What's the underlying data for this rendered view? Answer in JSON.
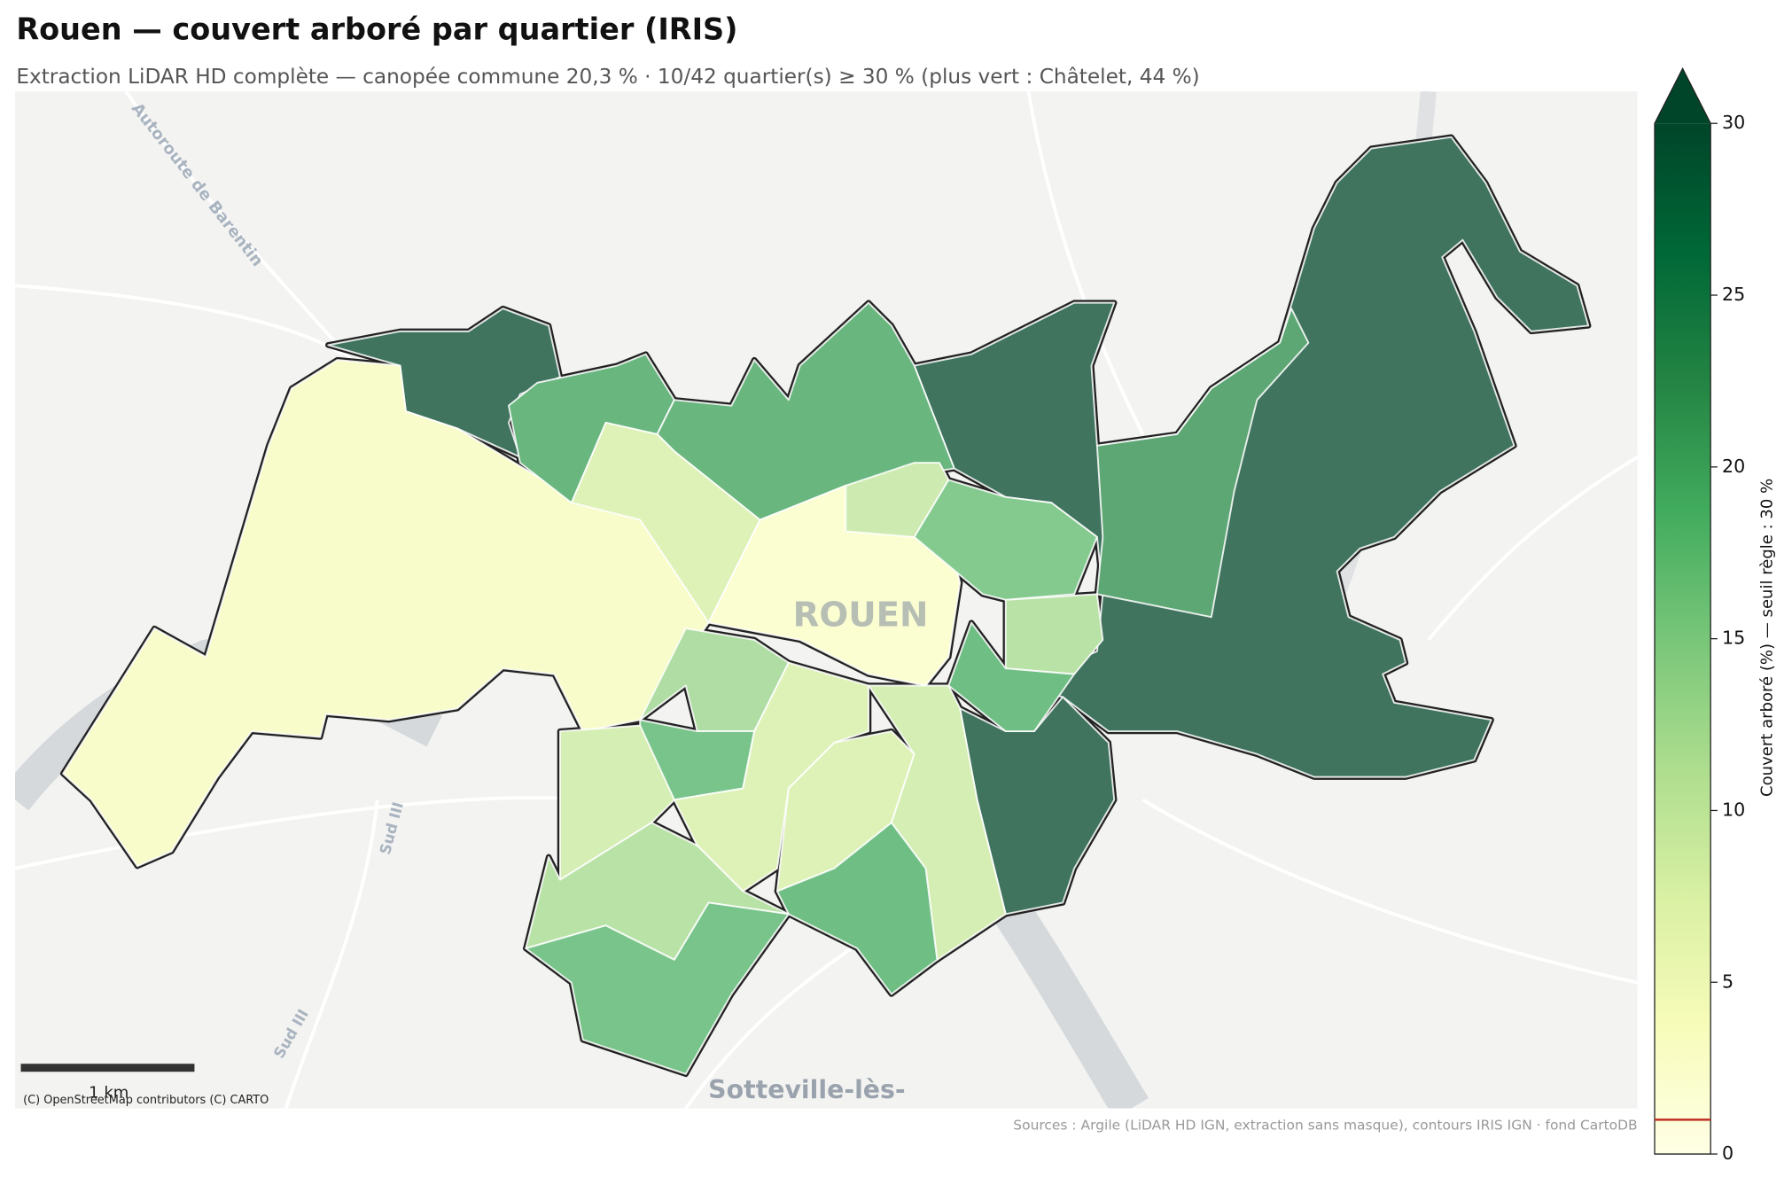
{
  "header": {
    "title": "Rouen — couvert arboré par quartier (IRIS)",
    "subtitle": "Extraction LiDAR HD complète — canopée commune 20,3 % · 10/42 quartier(s) ≥ 30 % (plus vert : Châtelet, 44 %)"
  },
  "map": {
    "place_labels": [
      "ROUEN",
      "Sotteville-lès-"
    ],
    "road_labels": [
      "Autoroute de Barentin",
      "Sud III",
      "Sud III"
    ],
    "districts": [
      44,
      35,
      33,
      22,
      4,
      20,
      20,
      8,
      3,
      10,
      17,
      12,
      19,
      13,
      18,
      9,
      8,
      8,
      9,
      19,
      12,
      18
    ],
    "scale_bar": "1 km",
    "attribution": "(C) OpenStreetMap contributors (C) CARTO",
    "source": "Sources : Argile (LiDAR HD IGN, extraction sans masque), contours IRIS IGN · fond CartoDB"
  },
  "colorbar": {
    "label": "Couvert arboré (%) — seuil règle : 30 %",
    "lim": [
      0,
      30
    ],
    "ticks": [
      0,
      5,
      10,
      15,
      20,
      25,
      30
    ],
    "extend": "max",
    "colors": [
      "#ffffe5",
      "#f7fcb9",
      "#d9f0a3",
      "#addd8e",
      "#78c679",
      "#41ab5d",
      "#238443",
      "#006837",
      "#004529"
    ],
    "threshold": 1,
    "threshold_color": "#c0392b"
  }
}
